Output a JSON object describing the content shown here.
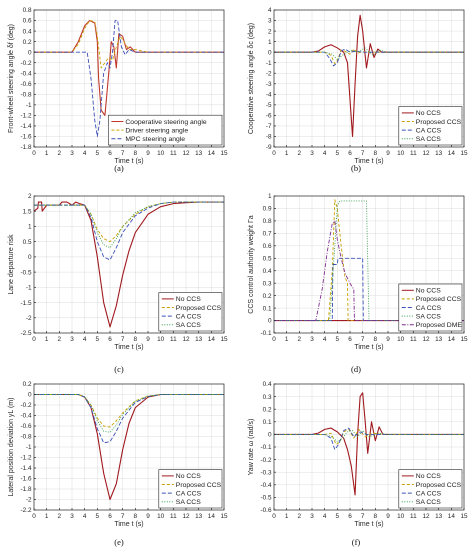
{
  "colors": {
    "no_ccs": "#a0191e",
    "cooperative": "#c0392b",
    "proposed_ccs": "#c9a000",
    "driver": "#c9a000",
    "ca_ccs": "#3b4fb8",
    "mpc": "#3b4fb8",
    "sa_ccs": "#3aa050",
    "proposed_dme": "#7d2d8c"
  },
  "chart_data": [
    {
      "id": "a",
      "tag": "(a)",
      "type": "line",
      "xlabel": "Time t (s)",
      "ylabel": "Front-wheel steering angle δf (deg)",
      "xlim": [
        0,
        15
      ],
      "ylim": [
        -1.8,
        0.8
      ],
      "xticks": [
        0,
        1,
        2,
        3,
        4,
        5,
        6,
        7,
        8,
        9,
        10,
        11,
        12,
        13,
        14,
        15
      ],
      "yticks": [
        -1.8,
        -1.6,
        -1.4,
        -1.2,
        -1,
        -0.8,
        -0.6,
        -0.4,
        -0.2,
        0,
        0.2,
        0.4,
        0.6,
        0.8
      ],
      "legend_position": "bottom-right",
      "series": [
        {
          "name": "Cooperative steering angle",
          "color_key": "cooperative",
          "dash": "",
          "x": [
            0,
            3,
            3.5,
            4,
            4.4,
            4.8,
            5,
            5.1,
            5.3,
            5.6,
            5.9,
            6.1,
            6.3,
            6.5,
            6.7,
            7.0,
            7.3,
            7.6,
            8,
            9,
            15
          ],
          "y": [
            0,
            0,
            0.2,
            0.5,
            0.6,
            0.55,
            0.2,
            -0.5,
            -1.1,
            -1.2,
            -0.4,
            0.2,
            0.1,
            -0.3,
            0.35,
            0.3,
            0.05,
            0.1,
            0,
            0,
            0
          ]
        },
        {
          "name": "Driver steering angle",
          "color_key": "driver",
          "dash": "3,2",
          "x": [
            0,
            3,
            3.5,
            4,
            4.4,
            4.8,
            5,
            5.3,
            5.6,
            5.9,
            6.2,
            6.5,
            6.8,
            7.1,
            7.5,
            8,
            9,
            15
          ],
          "y": [
            0,
            0,
            0.15,
            0.45,
            0.6,
            0.58,
            0.3,
            -0.3,
            -0.2,
            -0.1,
            -0.15,
            0.1,
            0.3,
            0.2,
            0.05,
            0.05,
            0,
            0
          ]
        },
        {
          "name": "MPC steering angle",
          "color_key": "mpc",
          "dash": "4,2",
          "x": [
            0,
            4.2,
            4.5,
            4.8,
            5.0,
            5.2,
            5.5,
            5.8,
            6.0,
            6.2,
            6.4,
            6.6,
            6.9,
            7.2,
            7.5,
            8,
            15
          ],
          "y": [
            0,
            0,
            -0.5,
            -1.3,
            -1.6,
            -1.3,
            -0.4,
            -0.2,
            -0.3,
            0,
            0.6,
            0.6,
            0.1,
            -0.05,
            0.05,
            0,
            0
          ]
        }
      ]
    },
    {
      "id": "b",
      "tag": "(b)",
      "type": "line",
      "xlabel": "Time t (s)",
      "ylabel": "Cooperative steering angle δc (deg)",
      "xlim": [
        0,
        15
      ],
      "ylim": [
        -9,
        4
      ],
      "xticks": [
        0,
        1,
        2,
        3,
        4,
        5,
        6,
        7,
        8,
        9,
        10,
        11,
        12,
        13,
        14,
        15
      ],
      "yticks": [
        -9,
        -8,
        -7,
        -6,
        -5,
        -4,
        -3,
        -2,
        -1,
        0,
        1,
        2,
        3,
        4
      ],
      "legend_position": "bottom-right",
      "series": [
        {
          "name": "No CCS",
          "color_key": "no_ccs",
          "dash": "",
          "x": [
            0,
            3,
            3.5,
            4,
            4.5,
            5,
            5.5,
            5.8,
            6.0,
            6.2,
            6.4,
            6.6,
            6.8,
            7.0,
            7.3,
            7.6,
            7.9,
            8.2,
            8.5,
            9,
            15
          ],
          "y": [
            0,
            0,
            0.1,
            0.5,
            0.7,
            0.4,
            0,
            -1.0,
            -4.5,
            -8.0,
            -3.0,
            1.5,
            3.5,
            2.0,
            -1.5,
            0.8,
            -0.5,
            0.3,
            0,
            0,
            0
          ]
        },
        {
          "name": "Proposed CCS",
          "color_key": "proposed_ccs",
          "dash": "3,2",
          "x": [
            0,
            4,
            4.5,
            4.8,
            5.0,
            5.3,
            5.6,
            6.0,
            6.3,
            6.6,
            7.0,
            7.5,
            8,
            15
          ],
          "y": [
            0,
            0,
            -0.3,
            -1.1,
            -0.8,
            0.2,
            0.1,
            -0.2,
            0.3,
            -0.1,
            0.05,
            0,
            0,
            0
          ]
        },
        {
          "name": "CA CCS",
          "color_key": "ca_ccs",
          "dash": "4,2",
          "x": [
            0,
            4,
            4.4,
            4.7,
            5.0,
            5.3,
            5.6,
            6.0,
            6.5,
            7,
            15
          ],
          "y": [
            0,
            0,
            -0.6,
            -1.3,
            -1.0,
            0.1,
            0.3,
            0,
            0.1,
            0,
            0
          ]
        },
        {
          "name": "SA CCS",
          "color_key": "sa_ccs",
          "dash": "1,1.5",
          "x": [
            0,
            4,
            4.6,
            5.0,
            5.4,
            5.8,
            6.2,
            6.6,
            7.2,
            7.8,
            8.3,
            9,
            15
          ],
          "y": [
            0,
            0,
            -0.2,
            -0.7,
            -0.3,
            0,
            0.2,
            0,
            0.4,
            -0.3,
            0.2,
            0,
            0
          ]
        }
      ]
    },
    {
      "id": "c",
      "tag": "(c)",
      "type": "line",
      "xlabel": "Time t (s)",
      "ylabel": "Lane departure risk",
      "xlim": [
        0,
        15
      ],
      "ylim": [
        -2.5,
        2
      ],
      "xticks": [
        0,
        1,
        2,
        3,
        4,
        5,
        6,
        7,
        8,
        9,
        10,
        11,
        12,
        13,
        14,
        15
      ],
      "yticks": [
        -2.5,
        -2,
        -1.5,
        -1,
        -0.5,
        0,
        0.5,
        1,
        1.5,
        2
      ],
      "legend_position": "bottom-right",
      "series": [
        {
          "name": "No CCS",
          "color_key": "no_ccs",
          "dash": "",
          "x": [
            0,
            0.3,
            0.35,
            0.6,
            0.65,
            1,
            2,
            2.2,
            2.6,
            3,
            3.3,
            3.6,
            4,
            4.5,
            5,
            5.5,
            6,
            6.5,
            7,
            7.5,
            8,
            9,
            10,
            11,
            12,
            13,
            15
          ],
          "y": [
            1.5,
            1.6,
            1.8,
            1.8,
            1.5,
            1.7,
            1.7,
            1.8,
            1.8,
            1.7,
            1.8,
            1.75,
            1.7,
            1.2,
            0,
            -1.5,
            -2.3,
            -1.6,
            -0.6,
            0.2,
            0.8,
            1.4,
            1.65,
            1.75,
            1.78,
            1.8,
            1.8
          ]
        },
        {
          "name": "Proposed CCS",
          "color_key": "proposed_ccs",
          "dash": "3,2",
          "x": [
            0,
            4,
            4.5,
            5,
            5.5,
            6,
            6.5,
            7,
            8,
            9,
            10,
            11,
            15
          ],
          "y": [
            1.7,
            1.7,
            1.4,
            0.9,
            0.6,
            0.5,
            0.7,
            1.0,
            1.4,
            1.65,
            1.75,
            1.8,
            1.8
          ]
        },
        {
          "name": "CA CCS",
          "color_key": "ca_ccs",
          "dash": "4,2",
          "x": [
            0,
            4,
            4.5,
            5,
            5.5,
            6,
            6.5,
            7,
            8,
            9,
            10,
            11,
            15
          ],
          "y": [
            1.7,
            1.7,
            1.3,
            0.5,
            0,
            -0.1,
            0.3,
            0.8,
            1.35,
            1.6,
            1.75,
            1.8,
            1.8
          ]
        },
        {
          "name": "SA CCS",
          "color_key": "sa_ccs",
          "dash": "1,1.5",
          "x": [
            0,
            4,
            4.5,
            5,
            5.5,
            6,
            6.5,
            7,
            8,
            9,
            10,
            11,
            15
          ],
          "y": [
            1.7,
            1.7,
            1.4,
            0.8,
            0.4,
            0.3,
            0.6,
            1.0,
            1.45,
            1.65,
            1.75,
            1.8,
            1.8
          ]
        }
      ]
    },
    {
      "id": "d",
      "tag": "(d)",
      "type": "line",
      "xlabel": "Time t (s)",
      "ylabel": "CCS control authority weight Γa",
      "xlim": [
        0,
        15
      ],
      "ylim": [
        -0.1,
        1
      ],
      "xticks": [
        0,
        1,
        2,
        3,
        4,
        5,
        6,
        7,
        8,
        9,
        10,
        11,
        12,
        13,
        14,
        15
      ],
      "yticks": [
        -0.1,
        0,
        0.1,
        0.2,
        0.3,
        0.4,
        0.5,
        0.6,
        0.7,
        0.8,
        0.9,
        1
      ],
      "legend_position": "bottom-right",
      "series": [
        {
          "name": "No CCS",
          "color_key": "no_ccs",
          "dash": "",
          "x": [
            0,
            15
          ],
          "y": [
            0,
            0
          ]
        },
        {
          "name": "Proposed CCS",
          "color_key": "proposed_ccs",
          "dash": "3,2",
          "x": [
            0,
            4.3,
            4.6,
            4.8,
            5.0,
            5.3,
            5.6,
            5.8,
            5.85,
            15
          ],
          "y": [
            0,
            0,
            0.4,
            0.97,
            0.9,
            0.6,
            0.35,
            0.3,
            0,
            0
          ]
        },
        {
          "name": "CA CCS",
          "color_key": "ca_ccs",
          "dash": "4,2",
          "x": [
            0,
            4.6,
            4.65,
            5.0,
            5.05,
            7.0,
            7.05,
            15
          ],
          "y": [
            0,
            0,
            0.45,
            0.45,
            0.5,
            0.5,
            0,
            0
          ]
        },
        {
          "name": "SA CCS",
          "color_key": "sa_ccs",
          "dash": "1,1.5",
          "x": [
            0,
            4.4,
            4.8,
            5.0,
            5.2,
            7.3,
            7.5,
            15
          ],
          "y": [
            0,
            0,
            0.6,
            0.92,
            0.96,
            0.96,
            0,
            0
          ]
        },
        {
          "name": "Proposed DME",
          "color_key": "proposed_dme",
          "dash": "4,1.5,1,1.5",
          "x": [
            0,
            3.3,
            3.8,
            4.2,
            4.6,
            4.8,
            5.0,
            5.3,
            5.6,
            6.0,
            6.3,
            6.35,
            15
          ],
          "y": [
            0,
            0,
            0.25,
            0.55,
            0.78,
            0.8,
            0.65,
            0.5,
            0.38,
            0.3,
            0.25,
            0,
            0
          ]
        }
      ]
    },
    {
      "id": "e",
      "tag": "(e)",
      "type": "line",
      "xlabel": "Time t (s)",
      "ylabel": "Lateral position deviation yL (m)",
      "xlim": [
        0,
        15
      ],
      "ylim": [
        -2.2,
        0.2
      ],
      "xticks": [
        0,
        1,
        2,
        3,
        4,
        5,
        6,
        7,
        8,
        9,
        10,
        11,
        12,
        13,
        14,
        15
      ],
      "yticks": [
        -2.2,
        -2,
        -1.8,
        -1.6,
        -1.4,
        -1.2,
        -1,
        -0.8,
        -0.6,
        -0.4,
        -0.2,
        0,
        0.2
      ],
      "legend_position": "bottom-right",
      "series": [
        {
          "name": "No CCS",
          "color_key": "no_ccs",
          "dash": "",
          "x": [
            0,
            3.5,
            4,
            4.5,
            5,
            5.5,
            6,
            6.5,
            7,
            7.5,
            8,
            9,
            10,
            11,
            12,
            15
          ],
          "y": [
            0,
            0,
            -0.05,
            -0.25,
            -0.75,
            -1.5,
            -2.0,
            -1.7,
            -1.05,
            -0.55,
            -0.25,
            -0.05,
            0,
            0,
            0,
            0
          ]
        },
        {
          "name": "Proposed CCS",
          "color_key": "proposed_ccs",
          "dash": "3,2",
          "x": [
            0,
            3.5,
            4,
            4.5,
            5,
            5.5,
            6,
            6.5,
            7,
            8,
            9,
            10,
            15
          ],
          "y": [
            0,
            0,
            -0.05,
            -0.2,
            -0.45,
            -0.6,
            -0.62,
            -0.5,
            -0.35,
            -0.12,
            -0.03,
            0,
            0
          ]
        },
        {
          "name": "CA CCS",
          "color_key": "ca_ccs",
          "dash": "4,2",
          "x": [
            0,
            3.5,
            4,
            4.5,
            5,
            5.5,
            6,
            6.5,
            7,
            8,
            9,
            10,
            15
          ],
          "y": [
            0,
            0,
            -0.05,
            -0.25,
            -0.65,
            -0.92,
            -0.9,
            -0.7,
            -0.45,
            -0.15,
            -0.04,
            0,
            0
          ]
        },
        {
          "name": "SA CCS",
          "color_key": "sa_ccs",
          "dash": "1,1.5",
          "x": [
            0,
            3.5,
            4,
            4.5,
            5,
            5.5,
            6,
            6.5,
            7,
            8,
            9,
            10,
            15
          ],
          "y": [
            0,
            0,
            -0.04,
            -0.2,
            -0.5,
            -0.7,
            -0.72,
            -0.58,
            -0.38,
            -0.13,
            -0.03,
            0,
            0
          ]
        }
      ]
    },
    {
      "id": "f",
      "tag": "(f)",
      "type": "line",
      "xlabel": "Time t (s)",
      "ylabel": "Yaw rate ω (rad/s)",
      "xlim": [
        0,
        15
      ],
      "ylim": [
        -0.6,
        0.4
      ],
      "xticks": [
        0,
        1,
        2,
        3,
        4,
        5,
        6,
        7,
        8,
        9,
        10,
        11,
        12,
        13,
        14,
        15
      ],
      "yticks": [
        -0.6,
        -0.5,
        -0.4,
        -0.3,
        -0.2,
        -0.1,
        0,
        0.1,
        0.2,
        0.3,
        0.4
      ],
      "legend_position": "bottom-right",
      "series": [
        {
          "name": "No CCS",
          "color_key": "no_ccs",
          "dash": "",
          "x": [
            0,
            3,
            3.5,
            4,
            4.5,
            5,
            5.5,
            5.8,
            6.1,
            6.4,
            6.6,
            6.8,
            7.0,
            7.2,
            7.4,
            7.7,
            8.0,
            8.3,
            8.6,
            9,
            15
          ],
          "y": [
            0,
            0,
            0.01,
            0.04,
            0.05,
            0.02,
            -0.03,
            -0.12,
            -0.25,
            -0.48,
            0.0,
            0.3,
            0.33,
            0.1,
            -0.15,
            0.1,
            -0.05,
            0.06,
            0,
            0,
            0
          ]
        },
        {
          "name": "Proposed CCS",
          "color_key": "proposed_ccs",
          "dash": "3,2",
          "x": [
            0,
            4,
            4.5,
            4.9,
            5.2,
            5.5,
            5.9,
            6.3,
            6.7,
            7.2,
            7.8,
            8.5,
            15
          ],
          "y": [
            0,
            0,
            0.01,
            -0.08,
            -0.06,
            0.02,
            0.04,
            -0.03,
            0.04,
            -0.02,
            0.01,
            0,
            0
          ]
        },
        {
          "name": "CA CCS",
          "color_key": "ca_ccs",
          "dash": "4,2",
          "x": [
            0,
            4,
            4.5,
            4.8,
            5.1,
            5.5,
            5.9,
            6.3,
            6.8,
            7.3,
            8,
            15
          ],
          "y": [
            0,
            0,
            -0.03,
            -0.12,
            -0.08,
            0.03,
            0.05,
            -0.02,
            0.02,
            0,
            0,
            0
          ]
        },
        {
          "name": "SA CCS",
          "color_key": "sa_ccs",
          "dash": "1,1.5",
          "x": [
            0,
            4,
            4.6,
            5.0,
            5.4,
            5.8,
            6.2,
            6.6,
            7.0,
            7.5,
            8.2,
            9,
            15
          ],
          "y": [
            0,
            0,
            -0.02,
            -0.06,
            -0.03,
            0.02,
            0.03,
            -0.02,
            0.03,
            -0.02,
            0.01,
            0,
            0
          ]
        }
      ]
    }
  ]
}
